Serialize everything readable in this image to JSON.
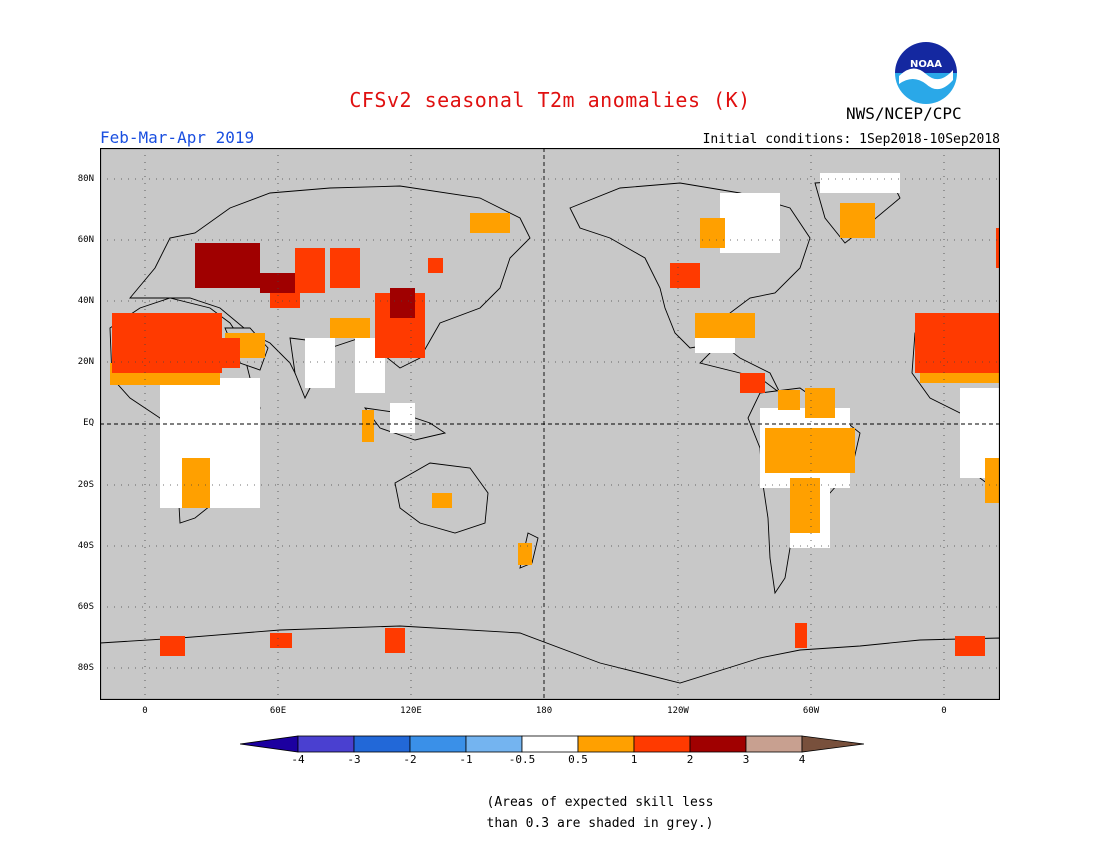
{
  "header": {
    "title": "CFSv2 seasonal T2m anomalies (K)",
    "agency": "NWS/NCEP/CPC",
    "period": "Feb-Mar-Apr 2019",
    "initial_conditions": "Initial conditions: 1Sep2018-10Sep2018",
    "logo_text": "NOAA"
  },
  "map": {
    "lat_labels": [
      "80N",
      "60N",
      "40N",
      "20N",
      "EQ",
      "20S",
      "40S",
      "60S",
      "80S"
    ],
    "lon_labels": [
      "0",
      "60E",
      "120E",
      "180",
      "120W",
      "60W",
      "0"
    ],
    "background_color": "#c8c8c8",
    "land_color": "#ffffff"
  },
  "legend": {
    "ticks": [
      "-4",
      "-3",
      "-2",
      "-1",
      "-0.5",
      "0.5",
      "1",
      "2",
      "3",
      "4"
    ],
    "colors": [
      "#1c00a0",
      "#4a40d0",
      "#2268d8",
      "#3a90e8",
      "#74b4f0",
      "#ffffff",
      "#ffa000",
      "#ff3a00",
      "#a00000",
      "#c8a090",
      "#78503c"
    ],
    "note_line1": "(Areas of expected skill less",
    "note_line2": "than 0.3 are shaded in grey.)"
  }
}
